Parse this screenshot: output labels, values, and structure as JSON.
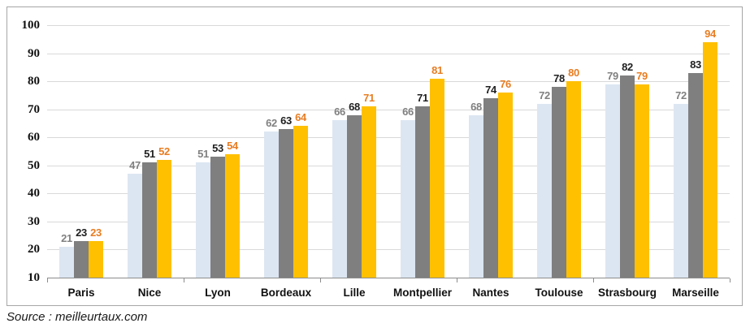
{
  "chart_data": {
    "type": "bar",
    "title": "",
    "xlabel": "",
    "ylabel": "",
    "categories": [
      "Paris",
      "Nice",
      "Lyon",
      "Bordeaux",
      "Lille",
      "Montpellier",
      "Nantes",
      "Toulouse",
      "Strasbourg",
      "Marseille"
    ],
    "series": [
      {
        "name": "series-light-blue",
        "color": "#dce6f2",
        "label_color": "#808080",
        "values": [
          21,
          47,
          51,
          62,
          66,
          66,
          68,
          72,
          79,
          72
        ]
      },
      {
        "name": "series-gray",
        "color": "#7f7f7f",
        "label_color": "#1f1f1f",
        "values": [
          23,
          51,
          53,
          63,
          68,
          71,
          74,
          78,
          82,
          83
        ]
      },
      {
        "name": "series-gold",
        "color": "#ffc000",
        "label_color": "#e87d22",
        "values": [
          23,
          52,
          54,
          64,
          71,
          81,
          76,
          80,
          79,
          94
        ]
      }
    ],
    "ylim": [
      10,
      100
    ],
    "ytick_step": 10,
    "y_tick_labels": [
      "10",
      "20",
      "30",
      "40",
      "50",
      "60",
      "70",
      "80",
      "90",
      "100"
    ],
    "grid": true,
    "legend": "none"
  },
  "footer": {
    "source": "Source : meilleurtaux.com"
  },
  "colors": {
    "background": "#ffffff",
    "frame_border": "#a6a6a6",
    "gridline": "#d9d9d9",
    "axis_line": "#8c8c8c"
  }
}
